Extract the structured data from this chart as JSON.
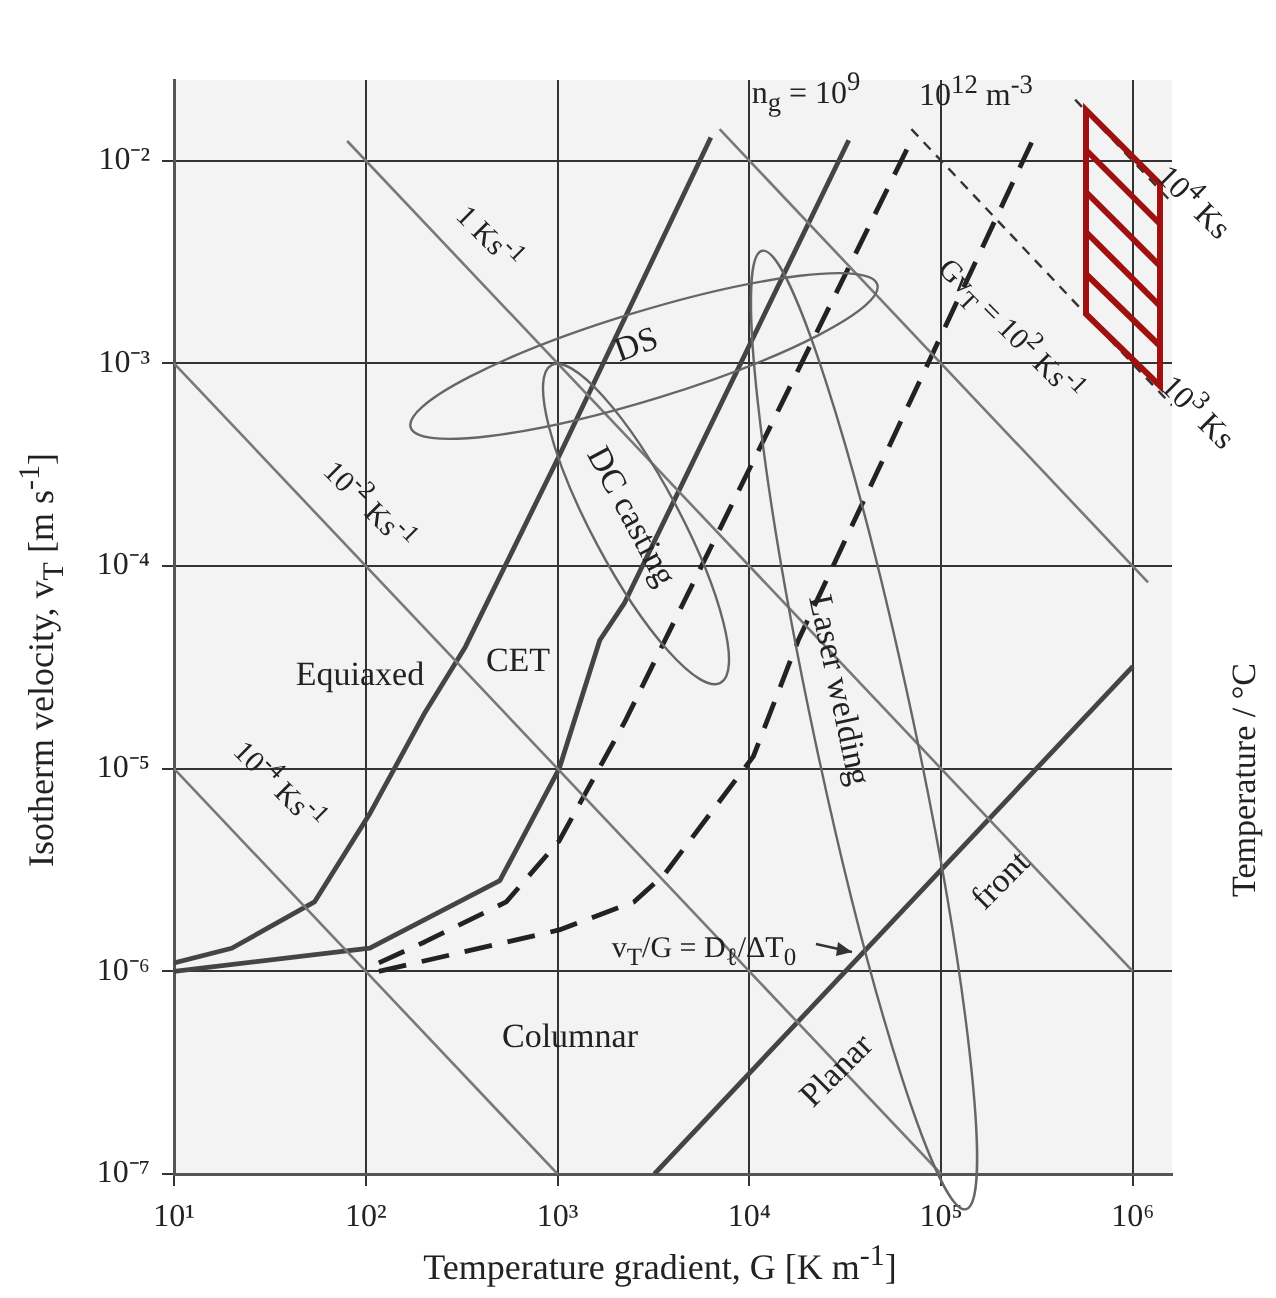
{
  "chart_data": {
    "type": "line",
    "xlabel": "Temperature gradient, G [K m$^{-1}$]",
    "ylabel": "Isotherm velocity, v$_{T}$ [m s$^{-1}$]",
    "log": "xy",
    "xlim": [
      10,
      1600000
    ],
    "xticks": [
      {
        "value": 10,
        "label": "10¹"
      },
      {
        "value": 100,
        "label": "10²"
      },
      {
        "value": 1000,
        "label": "10³"
      },
      {
        "value": 10000,
        "label": "10⁴"
      },
      {
        "value": 100000,
        "label": "10⁵"
      },
      {
        "value": 1000000,
        "label": "10⁶"
      }
    ],
    "ylim": [
      1e-07,
      0.025
    ],
    "yticks": [
      {
        "value": 1e-07,
        "label": "10⁻⁷"
      },
      {
        "value": 1e-06,
        "label": "10⁻⁶"
      },
      {
        "value": 1e-05,
        "label": "10⁻⁵"
      },
      {
        "value": 0.0001,
        "label": "10⁻⁴"
      },
      {
        "value": 0.001,
        "label": "10⁻³"
      },
      {
        "value": 0.01,
        "label": "10⁻²"
      }
    ],
    "grid": true,
    "legend": false,
    "marker": "none",
    "series": [
      {
        "color": "#787878",
        "line_style": "solid",
        "x": [
          10,
          1000
        ],
        "values": [
          1e-05,
          1e-07
        ]
      },
      {
        "color": "#787878",
        "line_style": "solid",
        "x": [
          10,
          100000
        ],
        "values": [
          0.001,
          1e-07
        ]
      },
      {
        "color": "#787878",
        "line_style": "solid",
        "x": [
          80,
          1000000
        ],
        "values": [
          0.0125,
          1e-06
        ]
      },
      {
        "color": "#787878",
        "line_style": "solid",
        "x": [
          7000,
          1200000
        ],
        "values": [
          0.0143,
          8.3e-05
        ]
      },
      {
        "color": "#333333",
        "line_style": "dotted",
        "x": [
          70000,
          1600000
        ],
        "values": [
          0.0143,
          0.00062
        ]
      },
      {
        "color": "#333333",
        "line_style": "dotted",
        "x": [
          500000,
          1600000
        ],
        "values": [
          0.02,
          0.0062
        ]
      },
      {
        "color": "#444444",
        "line_style": "solid",
        "x": [
          3200,
          1000000
        ],
        "values": [
          1e-07,
          3.2e-05
        ]
      },
      {
        "color": "#444444",
        "line_style": "solid",
        "x": [
          10,
          20,
          54,
          105,
          204,
          331,
          1020,
          6300
        ],
        "values": [
          1.1e-06,
          1.3e-06,
          2.2e-06,
          6e-06,
          1.9e-05,
          4e-05,
          0.00035,
          0.013
        ]
      },
      {
        "color": "#444444",
        "line_style": "solid",
        "x": [
          10,
          105,
          500,
          1020,
          1660,
          2240,
          33000
        ],
        "values": [
          1e-06,
          1.3e-06,
          2.8e-06,
          1e-05,
          4.3e-05,
          6.6e-05,
          0.0126
        ]
      },
      {
        "color": "#222222",
        "line_style": "dashed",
        "x": [
          117,
          204,
          540,
          1020,
          2240,
          70000
        ],
        "values": [
          1.1e-06,
          1.4e-06,
          2.2e-06,
          4.4e-06,
          1.7e-05,
          0.0126
        ]
      },
      {
        "color": "#222222",
        "line_style": "dashed",
        "x": [
          117,
          1020,
          2500,
          3600,
          10500,
          18000,
          300000
        ],
        "values": [
          1e-06,
          1.6e-06,
          2.2e-06,
          3e-06,
          1.15e-05,
          4.3e-05,
          0.0126
        ]
      }
    ],
    "annotations": [
      "1 Ks$^{-1}$",
      "10$^{-2}$ Ks$^{-1}$",
      "10$^{-4}$ Ks$^{-1}$",
      "Gv$_{T}$ = 10$^{2}$ Ks$^{-1}$",
      "10$^{4}$ Ks",
      "10$^{3}$ Ks",
      "n$_{g}$ = 10$^{9}$",
      "10$^{12}$ m$^{-3}$",
      "DS",
      "DC casting",
      "Laser welding",
      "Equiaxed",
      "CET",
      "Columnar",
      "Planar",
      "front",
      "v$_{T}$/G = D$_{ℓ}$/ΔT$_{0}$",
      "Temperature / °C"
    ]
  }
}
